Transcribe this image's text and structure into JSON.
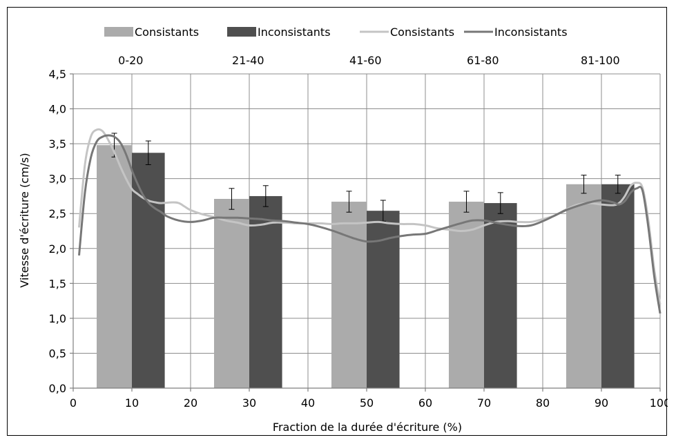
{
  "chart_data": {
    "type": "bar",
    "xlabel": "Fraction de la durée d'écriture (%)",
    "ylabel": "Vitesse d'écriture (cm/s)",
    "xlim": [
      0,
      100
    ],
    "ylim": [
      0,
      4.5
    ],
    "x_ticks": [
      "0",
      "10",
      "20",
      "30",
      "40",
      "50",
      "60",
      "70",
      "80",
      "90",
      "100"
    ],
    "y_ticks": [
      "0,0",
      "0,5",
      "1,0",
      "1,5",
      "2,0",
      "2,5",
      "3,0",
      "3,5",
      "4,0",
      "4,5"
    ],
    "grid": true,
    "legend_position": "top",
    "top_categories": [
      "0-20",
      "21-40",
      "41-60",
      "61-80",
      "81-100"
    ],
    "bar_series": [
      {
        "name": "Consistants",
        "color": "#ababab",
        "x_range": [
          [
            4,
            10
          ],
          [
            24,
            30
          ],
          [
            44,
            50
          ],
          [
            64,
            70
          ],
          [
            84,
            90
          ]
        ],
        "values": [
          3.48,
          2.71,
          2.67,
          2.67,
          2.92
        ],
        "error": [
          0.17,
          0.15,
          0.15,
          0.15,
          0.13
        ]
      },
      {
        "name": "Inconsistants",
        "color": "#4f4f4f",
        "x_range": [
          [
            10,
            15.6
          ],
          [
            30,
            35.6
          ],
          [
            50,
            55.6
          ],
          [
            70,
            75.6
          ],
          [
            90,
            95.6
          ]
        ],
        "values": [
          3.37,
          2.75,
          2.54,
          2.65,
          2.92
        ],
        "error": [
          0.17,
          0.15,
          0.15,
          0.15,
          0.13
        ]
      }
    ],
    "line_series": [
      {
        "name": "Consistants",
        "color": "#c4c4c4",
        "points": [
          [
            1,
            2.3
          ],
          [
            2,
            3.2
          ],
          [
            3,
            3.6
          ],
          [
            4,
            3.7
          ],
          [
            5,
            3.68
          ],
          [
            6,
            3.55
          ],
          [
            7,
            3.38
          ],
          [
            8,
            3.18
          ],
          [
            9,
            3.0
          ],
          [
            10,
            2.85
          ],
          [
            11,
            2.78
          ],
          [
            12,
            2.72
          ],
          [
            13,
            2.68
          ],
          [
            14,
            2.66
          ],
          [
            15,
            2.65
          ],
          [
            17,
            2.66
          ],
          [
            18,
            2.65
          ],
          [
            19,
            2.6
          ],
          [
            20,
            2.55
          ],
          [
            22,
            2.49
          ],
          [
            24,
            2.45
          ],
          [
            26,
            2.4
          ],
          [
            28,
            2.37
          ],
          [
            30,
            2.33
          ],
          [
            32,
            2.34
          ],
          [
            34,
            2.37
          ],
          [
            36,
            2.37
          ],
          [
            38,
            2.36
          ],
          [
            40,
            2.36
          ],
          [
            42,
            2.36
          ],
          [
            44,
            2.35
          ],
          [
            46,
            2.36
          ],
          [
            48,
            2.36
          ],
          [
            50,
            2.37
          ],
          [
            52,
            2.38
          ],
          [
            54,
            2.36
          ],
          [
            56,
            2.35
          ],
          [
            58,
            2.35
          ],
          [
            60,
            2.33
          ],
          [
            62,
            2.29
          ],
          [
            64,
            2.27
          ],
          [
            66,
            2.25
          ],
          [
            68,
            2.27
          ],
          [
            70,
            2.33
          ],
          [
            72,
            2.38
          ],
          [
            74,
            2.39
          ],
          [
            76,
            2.38
          ],
          [
            78,
            2.38
          ],
          [
            80,
            2.42
          ],
          [
            82,
            2.47
          ],
          [
            84,
            2.56
          ],
          [
            86,
            2.63
          ],
          [
            88,
            2.65
          ],
          [
            90,
            2.63
          ],
          [
            92,
            2.62
          ],
          [
            93,
            2.65
          ],
          [
            94,
            2.75
          ],
          [
            95,
            2.9
          ],
          [
            96,
            2.94
          ],
          [
            97,
            2.87
          ],
          [
            98,
            2.4
          ],
          [
            99,
            1.7
          ],
          [
            100,
            1.2
          ]
        ]
      },
      {
        "name": "Inconsistants",
        "color": "#777777",
        "points": [
          [
            1,
            1.9
          ],
          [
            2,
            2.8
          ],
          [
            3,
            3.3
          ],
          [
            4,
            3.53
          ],
          [
            5,
            3.6
          ],
          [
            6,
            3.62
          ],
          [
            7,
            3.6
          ],
          [
            8,
            3.52
          ],
          [
            9,
            3.35
          ],
          [
            10,
            3.12
          ],
          [
            11,
            2.92
          ],
          [
            12,
            2.75
          ],
          [
            13,
            2.64
          ],
          [
            14,
            2.57
          ],
          [
            15,
            2.52
          ],
          [
            16,
            2.46
          ],
          [
            18,
            2.4
          ],
          [
            20,
            2.38
          ],
          [
            22,
            2.4
          ],
          [
            24,
            2.44
          ],
          [
            26,
            2.44
          ],
          [
            28,
            2.44
          ],
          [
            30,
            2.43
          ],
          [
            32,
            2.42
          ],
          [
            34,
            2.4
          ],
          [
            36,
            2.39
          ],
          [
            38,
            2.37
          ],
          [
            40,
            2.35
          ],
          [
            42,
            2.31
          ],
          [
            44,
            2.26
          ],
          [
            46,
            2.2
          ],
          [
            48,
            2.14
          ],
          [
            50,
            2.1
          ],
          [
            52,
            2.11
          ],
          [
            54,
            2.15
          ],
          [
            56,
            2.18
          ],
          [
            58,
            2.2
          ],
          [
            60,
            2.21
          ],
          [
            62,
            2.26
          ],
          [
            64,
            2.31
          ],
          [
            66,
            2.36
          ],
          [
            68,
            2.4
          ],
          [
            70,
            2.4
          ],
          [
            72,
            2.37
          ],
          [
            74,
            2.34
          ],
          [
            76,
            2.32
          ],
          [
            78,
            2.33
          ],
          [
            80,
            2.39
          ],
          [
            82,
            2.47
          ],
          [
            84,
            2.55
          ],
          [
            86,
            2.61
          ],
          [
            88,
            2.66
          ],
          [
            90,
            2.69
          ],
          [
            92,
            2.66
          ],
          [
            93,
            2.63
          ],
          [
            94,
            2.68
          ],
          [
            95,
            2.8
          ],
          [
            96,
            2.86
          ],
          [
            97,
            2.83
          ],
          [
            98,
            2.3
          ],
          [
            99,
            1.6
          ],
          [
            100,
            1.07
          ]
        ]
      }
    ]
  }
}
